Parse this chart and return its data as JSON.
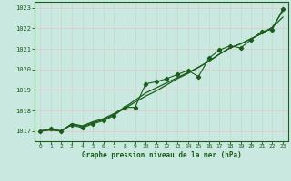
{
  "title": "Graphe pression niveau de la mer (hPa)",
  "bg_color": "#c8e8e0",
  "grid_color_h": "#e8c8c8",
  "grid_color_v": "#c8d8d0",
  "line_color": "#1a5c1a",
  "xlim": [
    -0.5,
    23.5
  ],
  "ylim": [
    1016.5,
    1023.3
  ],
  "yticks": [
    1017,
    1018,
    1019,
    1020,
    1021,
    1022,
    1023
  ],
  "xticks": [
    0,
    1,
    2,
    3,
    4,
    5,
    6,
    7,
    8,
    9,
    10,
    11,
    12,
    13,
    14,
    15,
    16,
    17,
    18,
    19,
    20,
    21,
    22,
    23
  ],
  "series_smooth": [
    1017.0,
    1017.05,
    1017.0,
    1017.35,
    1017.25,
    1017.45,
    1017.6,
    1017.85,
    1018.15,
    1018.5,
    1018.85,
    1019.1,
    1019.35,
    1019.6,
    1019.85,
    1020.1,
    1020.4,
    1020.75,
    1021.05,
    1021.25,
    1021.5,
    1021.75,
    1022.05,
    1022.85
  ],
  "series_marker": [
    1017.0,
    1017.1,
    1017.0,
    1017.3,
    1017.15,
    1017.35,
    1017.5,
    1017.75,
    1018.15,
    1018.15,
    1019.3,
    1019.4,
    1019.55,
    1019.75,
    1019.95,
    1019.65,
    1020.55,
    1020.95,
    1021.15,
    1021.05,
    1021.45,
    1021.85,
    1021.95,
    1022.95
  ],
  "series_line2": [
    1017.0,
    1017.05,
    1017.0,
    1017.35,
    1017.2,
    1017.4,
    1017.55,
    1017.8,
    1018.1,
    1018.4,
    1018.7,
    1018.95,
    1019.25,
    1019.55,
    1019.8,
    1020.1,
    1020.4,
    1020.75,
    1021.05,
    1021.25,
    1021.5,
    1021.75,
    1022.05,
    1022.55
  ]
}
